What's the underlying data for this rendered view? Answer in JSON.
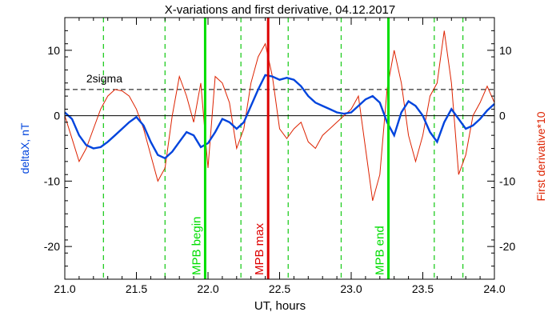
{
  "chart_data": {
    "type": "line",
    "title": "X-variations and first derivative, 04.12.2017",
    "xlabel": "UT, hours",
    "ylabel_left": "deltaX, nT",
    "ylabel_right": "First derivative*10",
    "xlim": [
      21.0,
      24.0
    ],
    "ylim": [
      -25,
      15
    ],
    "x_ticks": [
      "21.0",
      "21.5",
      "22.0",
      "22.5",
      "23.0",
      "23.5",
      "24.0"
    ],
    "x_tick_values": [
      21.0,
      21.5,
      22.0,
      22.5,
      23.0,
      23.5,
      24.0
    ],
    "y_ticks": [
      "10",
      "0",
      "-10",
      "-20"
    ],
    "y_tick_values": [
      10,
      0,
      -10,
      -20
    ],
    "grid": false,
    "threshold": {
      "label": "2sigma",
      "value": 4
    },
    "zero_line": 0,
    "vertical_markers": [
      {
        "label": "MPB begin",
        "x": 21.98,
        "color": "#00dd00"
      },
      {
        "label": "MPB max",
        "x": 22.42,
        "color": "#dd0000"
      },
      {
        "label": "MPB end",
        "x": 23.26,
        "color": "#00dd00"
      }
    ],
    "dashed_lines_x": [
      21.27,
      21.7,
      22.23,
      22.56,
      22.93,
      23.58,
      23.78
    ],
    "colors": {
      "deltaX": "#0044dd",
      "derivative": "#dd2200",
      "dashed": "#22cc22",
      "axis": "#000000"
    },
    "series": [
      {
        "axis": "left",
        "color": "#0044dd",
        "x": [
          21.0,
          21.05,
          21.1,
          21.15,
          21.2,
          21.25,
          21.3,
          21.35,
          21.4,
          21.45,
          21.5,
          21.55,
          21.6,
          21.65,
          21.7,
          21.75,
          21.8,
          21.85,
          21.9,
          21.95,
          22.0,
          22.05,
          22.1,
          22.15,
          22.2,
          22.25,
          22.3,
          22.35,
          22.4,
          22.45,
          22.5,
          22.55,
          22.6,
          22.65,
          22.7,
          22.75,
          22.8,
          22.85,
          22.9,
          22.95,
          23.0,
          23.05,
          23.1,
          23.15,
          23.2,
          23.25,
          23.3,
          23.35,
          23.4,
          23.45,
          23.5,
          23.55,
          23.6,
          23.65,
          23.7,
          23.75,
          23.8,
          23.85,
          23.9,
          23.95,
          24.0
        ],
        "y": [
          0.5,
          -0.5,
          -3.0,
          -4.5,
          -5.0,
          -4.8,
          -4.0,
          -3.0,
          -2.0,
          -1.0,
          -0.2,
          -1.5,
          -4.0,
          -6.0,
          -6.5,
          -5.5,
          -4.0,
          -2.5,
          -3.0,
          -4.8,
          -4.2,
          -2.5,
          -0.5,
          -1.0,
          -2.0,
          -1.0,
          1.5,
          4.0,
          6.2,
          6.0,
          5.5,
          5.8,
          5.5,
          4.5,
          3.0,
          2.0,
          1.5,
          1.0,
          0.5,
          0.3,
          0.5,
          1.5,
          2.5,
          3.0,
          2.0,
          -1.0,
          -3.0,
          0.5,
          2.2,
          1.5,
          0.0,
          -2.5,
          -4.0,
          -1.0,
          1.0,
          -0.5,
          -2.0,
          -1.5,
          -0.5,
          0.8,
          1.8
        ]
      },
      {
        "axis": "right",
        "color": "#dd2200",
        "x": [
          21.0,
          21.05,
          21.1,
          21.15,
          21.2,
          21.25,
          21.3,
          21.35,
          21.4,
          21.45,
          21.5,
          21.55,
          21.6,
          21.65,
          21.7,
          21.75,
          21.8,
          21.85,
          21.9,
          21.95,
          22.0,
          22.05,
          22.1,
          22.15,
          22.2,
          22.25,
          22.3,
          22.35,
          22.4,
          22.45,
          22.5,
          22.55,
          22.6,
          22.65,
          22.7,
          22.75,
          22.8,
          22.85,
          22.9,
          22.95,
          23.0,
          23.05,
          23.1,
          23.15,
          23.2,
          23.25,
          23.3,
          23.35,
          23.4,
          23.45,
          23.5,
          23.55,
          23.6,
          23.65,
          23.7,
          23.75,
          23.8,
          23.85,
          23.9,
          23.95,
          24.0
        ],
        "y": [
          0.0,
          -3.5,
          -7.0,
          -5.0,
          -2.0,
          1.0,
          3.0,
          4.0,
          3.8,
          3.0,
          1.0,
          -2.0,
          -6.0,
          -10.0,
          -8.0,
          0.0,
          6.0,
          3.0,
          -1.0,
          5.0,
          -8.0,
          6.0,
          5.0,
          2.0,
          -5.0,
          -2.0,
          5.0,
          9.0,
          11.0,
          6.0,
          -2.0,
          -3.5,
          -2.0,
          -1.0,
          -4.0,
          -5.0,
          -3.0,
          -2.0,
          -1.0,
          0.0,
          1.0,
          3.0,
          -5.0,
          -13.0,
          -9.0,
          4.0,
          10.0,
          5.0,
          -3.0,
          -7.0,
          -3.0,
          3.0,
          5.0,
          13.0,
          5.0,
          -9.0,
          -6.0,
          0.0,
          2.0,
          4.5,
          2.0
        ]
      }
    ]
  }
}
